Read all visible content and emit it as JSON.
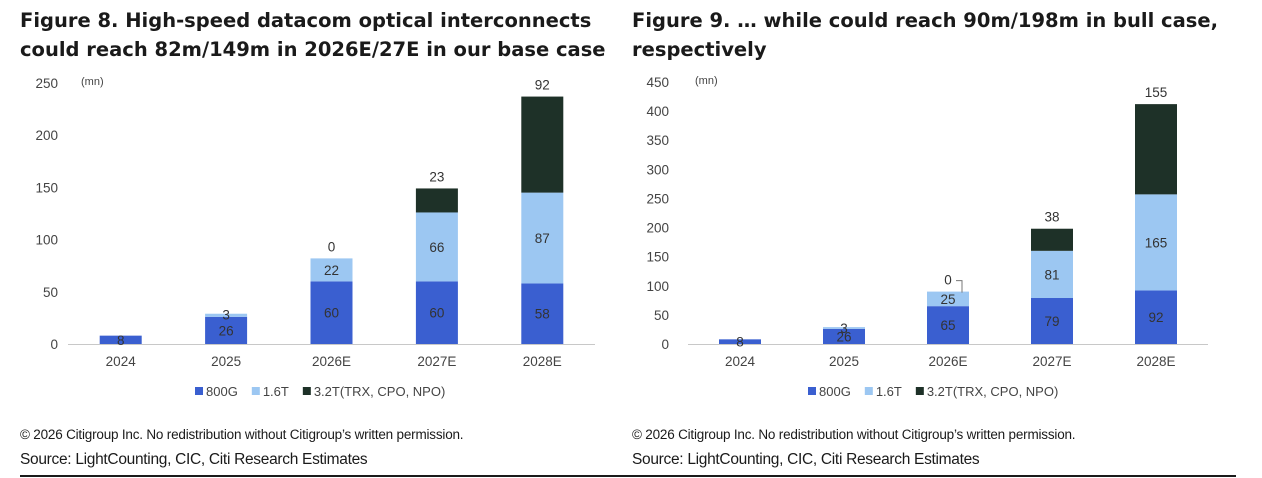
{
  "colors": {
    "s800g": "#3a5fd0",
    "s16t": "#9cc7f2",
    "s32t": "#1e3128",
    "axis": "#c8c8c8",
    "text": "#444444"
  },
  "legend_items": [
    {
      "label": "800G",
      "color": "#3a5fd0"
    },
    {
      "label": "1.6T",
      "color": "#9cc7f2"
    },
    {
      "label": "3.2T(TRX, CPO, NPO)",
      "color": "#1e3128"
    }
  ],
  "figures": [
    {
      "title": "Figure 8. High-speed datacom optical interconnects could reach 82m/149m in 2026E/27E in our base case",
      "copyright": "© 2026 Citigroup Inc. No redistribution without Citigroup’s written permission.",
      "source": "Source: LightCounting, CIC, Citi Research Estimates",
      "chart_data": {
        "type": "bar",
        "stacked": true,
        "unit_label": "(mn)",
        "categories": [
          "2024",
          "2025",
          "2026E",
          "2027E",
          "2028E"
        ],
        "ylim": [
          0,
          250
        ],
        "yticks": [
          0,
          50,
          100,
          150,
          200,
          250
        ],
        "grid": false,
        "legend": "bottom",
        "series": [
          {
            "name": "800G",
            "values": [
              8,
              26,
              60,
              60,
              58
            ]
          },
          {
            "name": "1.6T",
            "values": [
              0,
              3,
              22,
              66,
              87
            ]
          },
          {
            "name": "3.2T(TRX, CPO, NPO)",
            "values": [
              0,
              0,
              0,
              23,
              92
            ]
          }
        ],
        "labels": [
          [
            "8",
            "26",
            "60",
            "60",
            "58"
          ],
          [
            "",
            "3",
            "22",
            "66",
            "87"
          ],
          [
            "",
            "",
            "0",
            "23",
            "92"
          ]
        ]
      }
    },
    {
      "title": "Figure 9. … while could reach 90m/198m in bull case, respectively",
      "copyright": "© 2026 Citigroup Inc. No redistribution without Citigroup’s written permission.",
      "source": "Source: LightCounting, CIC, Citi Research Estimates",
      "chart_data": {
        "type": "bar",
        "stacked": true,
        "unit_label": "(mn)",
        "categories": [
          "2024",
          "2025",
          "2026E",
          "2027E",
          "2028E"
        ],
        "ylim": [
          0,
          450
        ],
        "yticks": [
          0,
          50,
          100,
          150,
          200,
          250,
          300,
          350,
          400,
          450
        ],
        "grid": false,
        "legend": "bottom",
        "series": [
          {
            "name": "800G",
            "values": [
              8,
              26,
              65,
              79,
              92
            ]
          },
          {
            "name": "1.6T",
            "values": [
              0,
              3,
              25,
              81,
              165
            ]
          },
          {
            "name": "3.2T(TRX, CPO, NPO)",
            "values": [
              0,
              0,
              0,
              38,
              155
            ]
          }
        ],
        "labels": [
          [
            "8",
            "26",
            "65",
            "79",
            "92"
          ],
          [
            "",
            "3",
            "25",
            "81",
            "165"
          ],
          [
            "",
            "",
            "0",
            "38",
            "155"
          ]
        ]
      }
    }
  ]
}
